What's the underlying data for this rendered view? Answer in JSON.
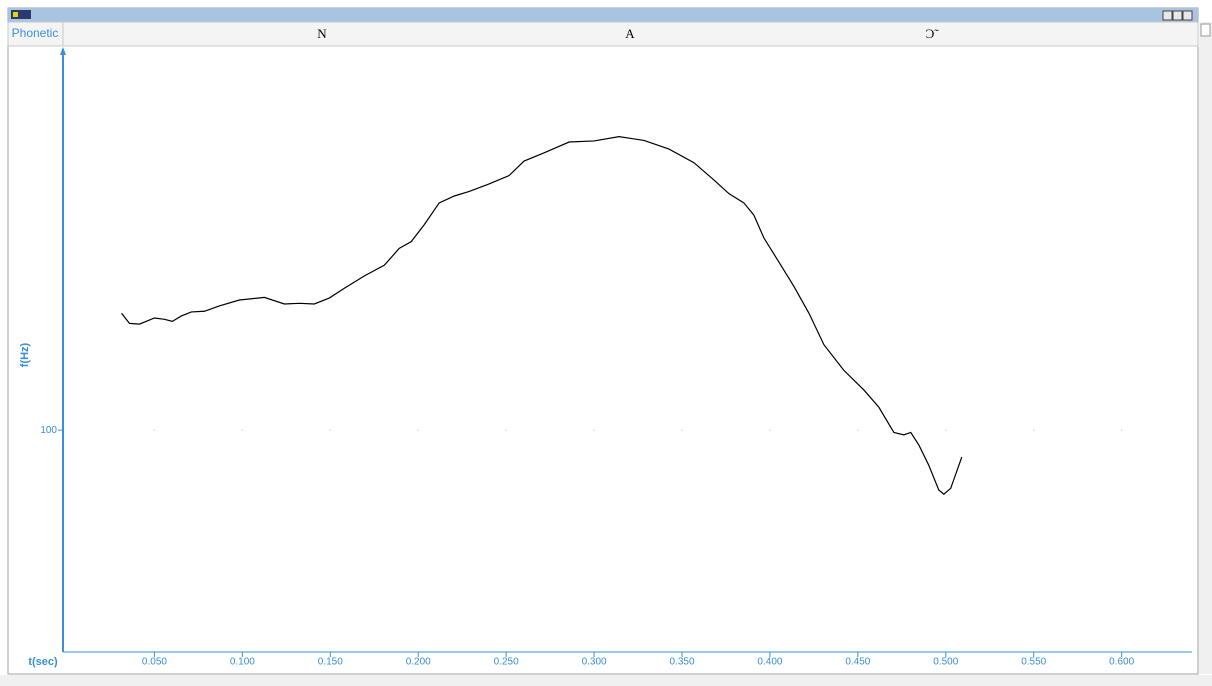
{
  "phonetic": {
    "label": "Phonetic",
    "segments": [
      "N",
      "A",
      "Ɔ̃"
    ]
  },
  "chart_data": {
    "type": "line",
    "xlabel": "t(sec)",
    "ylabel": "f(Hz)",
    "log_y": true,
    "x": [
      0.0313,
      0.0358,
      0.0415,
      0.05,
      0.0557,
      0.0602,
      0.0653,
      0.071,
      0.0784,
      0.0869,
      0.0983,
      0.1125,
      0.1239,
      0.1324,
      0.1409,
      0.1494,
      0.158,
      0.1693,
      0.1807,
      0.1892,
      0.196,
      0.2034,
      0.2119,
      0.2205,
      0.229,
      0.2403,
      0.2517,
      0.2602,
      0.2716,
      0.2858,
      0.3,
      0.3142,
      0.3284,
      0.3426,
      0.3568,
      0.3682,
      0.3767,
      0.3852,
      0.3909,
      0.3966,
      0.4051,
      0.4136,
      0.4222,
      0.4307,
      0.442,
      0.4534,
      0.4619,
      0.4705,
      0.4761,
      0.4801,
      0.4847,
      0.4903,
      0.496,
      0.4989,
      0.5028,
      0.5091
    ],
    "series": [
      {
        "color": "#000000",
        "values": [
          116.2,
          114.7,
          114.6,
          115.5,
          115.3,
          115.0,
          115.8,
          116.4,
          116.5,
          117.3,
          118.2,
          118.6,
          117.6,
          117.7,
          117.6,
          118.5,
          120.0,
          121.9,
          123.6,
          126.3,
          127.4,
          130.2,
          133.9,
          135.1,
          135.9,
          137.2,
          138.7,
          141.3,
          142.8,
          144.8,
          145.0,
          145.8,
          145.1,
          143.5,
          141.0,
          137.9,
          135.5,
          133.9,
          131.8,
          128.0,
          124.1,
          120.3,
          116.2,
          111.6,
          108.0,
          105.3,
          103.0,
          99.7,
          99.4,
          99.7,
          98.1,
          95.6,
          92.6,
          92.1,
          92.8,
          96.6
        ]
      }
    ],
    "xlim": [
      -0.002,
      0.64
    ],
    "ylim": [
      75.2,
      163.6
    ],
    "xticks": [
      {
        "value": 0.05,
        "label": "0.050"
      },
      {
        "value": 0.1,
        "label": "0.100"
      },
      {
        "value": 0.15,
        "label": "0.150"
      },
      {
        "value": 0.2,
        "label": "0.200"
      },
      {
        "value": 0.25,
        "label": "0.250"
      },
      {
        "value": 0.3,
        "label": "0.300"
      },
      {
        "value": 0.35,
        "label": "0.350"
      },
      {
        "value": 0.4,
        "label": "0.400"
      },
      {
        "value": 0.45,
        "label": "0.450"
      },
      {
        "value": 0.5,
        "label": "0.500"
      },
      {
        "value": 0.55,
        "label": "0.550"
      },
      {
        "value": 0.6,
        "label": "0.600"
      }
    ],
    "yticks": [
      100
    ]
  }
}
